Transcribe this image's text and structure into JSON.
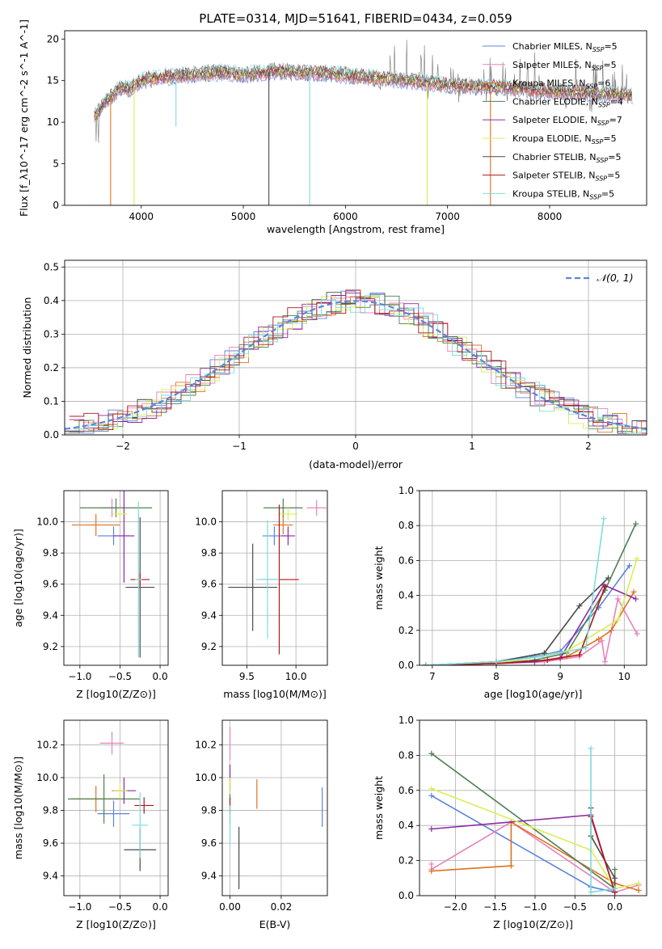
{
  "figure": {
    "title": "PLATE=0314, MJD=51641, FIBERID=0434, z=0.059"
  },
  "colors": {
    "chabrier_miles": "#5b84dc",
    "salpeter_miles": "#e882bb",
    "kroupa_miles": "#e0731e",
    "chabrier_elodie": "#4f8050",
    "salpeter_elodie": "#8d2aa6",
    "kroupa_elodie": "#d8ef55",
    "chabrier_stelib": "#4a4a4a",
    "salpeter_stelib": "#b01818",
    "kroupa_stelib": "#7fdcdc",
    "grid": "#b0b0b0"
  },
  "chart_data": [
    {
      "id": "spectrum",
      "type": "line",
      "xlabel": "wavelength [Angstrom, rest frame]",
      "ylabel": "Flux [f_λ10^-17 erg cm^-2 s^-1 A^-1]",
      "xlim": [
        3250,
        8950
      ],
      "ylim": [
        0,
        21
      ],
      "xticks": [
        4000,
        5000,
        6000,
        7000,
        8000
      ],
      "yticks": [
        0,
        5,
        10,
        15,
        20
      ],
      "grid": false,
      "legend_position": "top-right",
      "legend": [
        {
          "label": "Chabrier MILES, N",
          "sub": "SSP",
          "tail": "=5",
          "color": "chabrier_miles"
        },
        {
          "label": "Salpeter MILES, N",
          "sub": "SSP",
          "tail": "=5",
          "color": "salpeter_miles"
        },
        {
          "label": "Kroupa MILES, N",
          "sub": "SSP",
          "tail": "=6",
          "color": "kroupa_miles"
        },
        {
          "label": "Chabrier ELODIE, N",
          "sub": "SSP",
          "tail": "=4",
          "color": "chabrier_elodie"
        },
        {
          "label": "Salpeter ELODIE, N",
          "sub": "SSP",
          "tail": "=7",
          "color": "salpeter_elodie"
        },
        {
          "label": "Kroupa ELODIE, N",
          "sub": "SSP",
          "tail": "=5",
          "color": "kroupa_elodie"
        },
        {
          "label": "Chabrier STELIB, N",
          "sub": "SSP",
          "tail": "=5",
          "color": "chabrier_stelib"
        },
        {
          "label": "Salpeter STELIB, N",
          "sub": "SSP",
          "tail": "=5",
          "color": "salpeter_stelib"
        },
        {
          "label": "Kroupa STELIB, N",
          "sub": "SSP",
          "tail": "=5",
          "color": "kroupa_stelib"
        }
      ],
      "continuum": [
        [
          3540,
          10.5
        ],
        [
          3650,
          12.5
        ],
        [
          3800,
          14.2
        ],
        [
          3900,
          14.0
        ],
        [
          4000,
          15.0
        ],
        [
          4200,
          15.4
        ],
        [
          4400,
          15.6
        ],
        [
          4600,
          15.8
        ],
        [
          4800,
          16.0
        ],
        [
          5000,
          15.7
        ],
        [
          5300,
          16.1
        ],
        [
          5600,
          16.0
        ],
        [
          6000,
          15.7
        ],
        [
          6300,
          15.3
        ],
        [
          6600,
          15.0
        ],
        [
          6900,
          14.6
        ],
        [
          7200,
          14.3
        ],
        [
          7500,
          14.2
        ],
        [
          7800,
          13.9
        ],
        [
          8100,
          13.7
        ],
        [
          8400,
          13.5
        ],
        [
          8810,
          13.2
        ]
      ],
      "dips": [
        [
          3700,
          0
        ],
        [
          3930,
          0
        ],
        [
          4340,
          9.5
        ],
        [
          5250,
          0
        ],
        [
          5650,
          0
        ],
        [
          6800,
          0
        ],
        [
          7420,
          0
        ]
      ]
    },
    {
      "id": "residuals",
      "type": "line",
      "xlabel": "(data-model)/error",
      "ylabel": "Normed distribution",
      "xlim": [
        -2.5,
        2.5
      ],
      "ylim": [
        0,
        0.52
      ],
      "xticks": [
        -2,
        -1,
        0,
        1,
        2
      ],
      "yticks": [
        0.0,
        0.1,
        0.2,
        0.3,
        0.4,
        0.5
      ],
      "grid": true,
      "legend_position": "top-right",
      "legend": [
        {
          "label": "𝒩(0, 1)",
          "color": "chabrier_miles",
          "dashed": true
        }
      ],
      "gaussian": {
        "mean": 0,
        "sigma": 1
      }
    },
    {
      "id": "age_vs_Z",
      "type": "scatter",
      "xlabel": "Z [log10(Z/Z⊙)]",
      "ylabel": "age  [log10(age/yr)]",
      "xlim": [
        -1.2,
        0.1
      ],
      "ylim": [
        9.08,
        10.2
      ],
      "xticks": [
        -1.0,
        -0.5,
        0.0
      ],
      "yticks": [
        9.2,
        9.4,
        9.6,
        9.8,
        10.0
      ],
      "grid": true,
      "points": [
        {
          "x": -0.58,
          "y": 9.91,
          "xerr": 0.2,
          "yerr": 0.06,
          "color": "chabrier_miles"
        },
        {
          "x": -0.6,
          "y": 10.09,
          "xerr": 0.15,
          "yerr": 0.06,
          "color": "salpeter_miles"
        },
        {
          "x": -0.8,
          "y": 9.98,
          "xerr": 0.3,
          "yerr": 0.07,
          "color": "kroupa_miles"
        },
        {
          "x": -0.55,
          "y": 10.09,
          "xerr": 0.45,
          "yerr": 0.06,
          "color": "chabrier_elodie"
        },
        {
          "x": -0.45,
          "y": 9.91,
          "xerr": 0.13,
          "yerr": 0.3,
          "color": "salpeter_elodie"
        },
        {
          "x": -0.5,
          "y": 10.05,
          "xerr": 0.09,
          "yerr": 0.04,
          "color": "kroupa_elodie"
        },
        {
          "x": -0.25,
          "y": 9.58,
          "xerr": 0.18,
          "yerr": 0.45,
          "color": "chabrier_stelib"
        },
        {
          "x": -0.25,
          "y": 9.63,
          "xerr": 0.12,
          "yerr": 0.04,
          "color": "salpeter_stelib"
        },
        {
          "x": -0.27,
          "y": 9.63,
          "xerr": 0.04,
          "yerr": 0.5,
          "color": "kroupa_stelib"
        }
      ]
    },
    {
      "id": "age_vs_mass",
      "type": "scatter",
      "xlabel": "mass [log10(M/M⊙)]",
      "ylabel": "",
      "xlim": [
        9.25,
        10.32
      ],
      "ylim": [
        9.08,
        10.2
      ],
      "xticks": [
        9.5,
        10.0
      ],
      "yticks": [
        9.2,
        9.4,
        9.6,
        9.8,
        10.0
      ],
      "grid": true,
      "points": [
        {
          "x": 9.78,
          "y": 9.91,
          "xerr": 0.12,
          "yerr": 0.06,
          "color": "chabrier_miles"
        },
        {
          "x": 10.21,
          "y": 10.09,
          "xerr": 0.1,
          "yerr": 0.05,
          "color": "salpeter_miles"
        },
        {
          "x": 9.87,
          "y": 9.98,
          "xerr": 0.1,
          "yerr": 0.06,
          "color": "kroupa_miles"
        },
        {
          "x": 9.87,
          "y": 10.09,
          "xerr": 0.2,
          "yerr": 0.06,
          "color": "chabrier_elodie"
        },
        {
          "x": 9.92,
          "y": 9.91,
          "xerr": 0.07,
          "yerr": 0.06,
          "color": "salpeter_elodie"
        },
        {
          "x": 9.92,
          "y": 10.05,
          "xerr": 0.1,
          "yerr": 0.04,
          "color": "kroupa_elodie"
        },
        {
          "x": 9.56,
          "y": 9.58,
          "xerr": 0.25,
          "yerr": 0.28,
          "color": "chabrier_stelib"
        },
        {
          "x": 9.83,
          "y": 9.63,
          "xerr": 0.2,
          "yerr": 0.48,
          "color": "salpeter_stelib"
        },
        {
          "x": 9.71,
          "y": 9.63,
          "xerr": 0.12,
          "yerr": 0.38,
          "color": "kroupa_stelib"
        }
      ]
    },
    {
      "id": "mass_weight_vs_age",
      "type": "line",
      "xlabel": "age  [log10(age/yr)]",
      "ylabel": "mass weight",
      "xlim": [
        6.8,
        10.35
      ],
      "ylim": [
        0,
        1.0
      ],
      "xticks": [
        7,
        8,
        9,
        10
      ],
      "yticks": [
        0.0,
        0.2,
        0.4,
        0.6,
        0.8,
        1.0
      ],
      "grid": true,
      "series": [
        {
          "color": "chabrier_miles",
          "x": [
            6.9,
            8.0,
            8.6,
            9.0,
            9.6,
            10.08
          ],
          "y": [
            0.0,
            0.02,
            0.05,
            0.08,
            0.33,
            0.57
          ]
        },
        {
          "color": "salpeter_miles",
          "x": [
            6.9,
            8.0,
            8.75,
            9.3,
            9.65,
            9.7,
            9.9,
            10.2
          ],
          "y": [
            0.0,
            0.01,
            0.02,
            0.05,
            0.14,
            0.02,
            0.38,
            0.18
          ]
        },
        {
          "color": "kroupa_miles",
          "x": [
            6.9,
            8.0,
            8.6,
            9.1,
            9.6,
            9.8,
            10.15
          ],
          "y": [
            0.0,
            0.01,
            0.02,
            0.05,
            0.15,
            0.2,
            0.42
          ]
        },
        {
          "color": "chabrier_elodie",
          "x": [
            6.9,
            8.0,
            8.6,
            9.1,
            9.7,
            10.18
          ],
          "y": [
            0.0,
            0.01,
            0.03,
            0.07,
            0.43,
            0.81
          ]
        },
        {
          "color": "salpeter_elodie",
          "x": [
            6.9,
            8.0,
            8.6,
            9.0,
            9.68,
            10.18
          ],
          "y": [
            0.0,
            0.01,
            0.02,
            0.04,
            0.46,
            0.38
          ]
        },
        {
          "color": "kroupa_elodie",
          "x": [
            6.9,
            8.0,
            8.5,
            9.1,
            9.9,
            10.2
          ],
          "y": [
            0.0,
            0.01,
            0.04,
            0.08,
            0.26,
            0.61
          ]
        },
        {
          "color": "chabrier_stelib",
          "x": [
            6.9,
            8.0,
            8.75,
            9.3,
            9.75
          ],
          "y": [
            0.0,
            0.02,
            0.07,
            0.34,
            0.5
          ]
        },
        {
          "color": "salpeter_stelib",
          "x": [
            6.9,
            8.0,
            8.8,
            9.3,
            9.7
          ],
          "y": [
            0.0,
            0.01,
            0.03,
            0.06,
            0.45
          ]
        },
        {
          "color": "kroupa_stelib",
          "x": [
            6.9,
            8.0,
            8.7,
            9.4,
            9.68
          ],
          "y": [
            0.0,
            0.02,
            0.05,
            0.1,
            0.84
          ]
        }
      ]
    },
    {
      "id": "mass_vs_Z",
      "type": "scatter",
      "xlabel": "Z [log10(Z/Z⊙)]",
      "ylabel": "mass [log10(M/M⊙)]",
      "xlim": [
        -1.2,
        0.1
      ],
      "ylim": [
        9.28,
        10.35
      ],
      "xticks": [
        -1.0,
        -0.5,
        0.0
      ],
      "yticks": [
        9.4,
        9.6,
        9.8,
        10.0,
        10.2
      ],
      "grid": true,
      "points": [
        {
          "x": -0.58,
          "y": 9.78,
          "xerr": 0.2,
          "yerr": 0.08,
          "color": "chabrier_miles"
        },
        {
          "x": -0.6,
          "y": 10.21,
          "xerr": 0.15,
          "yerr": 0.07,
          "color": "salpeter_miles"
        },
        {
          "x": -0.8,
          "y": 9.87,
          "xerr": 0.3,
          "yerr": 0.08,
          "color": "kroupa_miles"
        },
        {
          "x": -0.7,
          "y": 9.87,
          "xerr": 0.45,
          "yerr": 0.15,
          "color": "chabrier_elodie"
        },
        {
          "x": -0.45,
          "y": 9.92,
          "xerr": 0.15,
          "yerr": 0.08,
          "color": "salpeter_elodie"
        },
        {
          "x": -0.5,
          "y": 9.92,
          "xerr": 0.09,
          "yerr": 0.05,
          "color": "kroupa_elodie"
        },
        {
          "x": -0.25,
          "y": 9.56,
          "xerr": 0.2,
          "yerr": 0.13,
          "color": "chabrier_stelib"
        },
        {
          "x": -0.2,
          "y": 9.83,
          "xerr": 0.12,
          "yerr": 0.05,
          "color": "salpeter_stelib"
        },
        {
          "x": -0.25,
          "y": 9.71,
          "xerr": 0.1,
          "yerr": 0.2,
          "color": "kroupa_stelib"
        }
      ]
    },
    {
      "id": "mass_vs_EBV",
      "type": "scatter",
      "xlabel": "E(B-V)",
      "ylabel": "",
      "xlim": [
        -0.003,
        0.038
      ],
      "ylim": [
        9.28,
        10.35
      ],
      "xticks": [
        0.0,
        0.02
      ],
      "yticks": [
        9.4,
        9.6,
        9.8,
        10.0,
        10.2
      ],
      "grid": true,
      "points": [
        {
          "x": 0.036,
          "y": 9.82,
          "xerr": 0,
          "yerr": 0.12,
          "color": "chabrier_miles"
        },
        {
          "x": 0.0,
          "y": 10.21,
          "xerr": 0,
          "yerr": 0.1,
          "color": "salpeter_miles"
        },
        {
          "x": 0.0105,
          "y": 9.9,
          "xerr": 0,
          "yerr": 0.09,
          "color": "kroupa_miles"
        },
        {
          "x": 0.0,
          "y": 9.87,
          "xerr": 0,
          "yerr": 0.15,
          "color": "chabrier_elodie"
        },
        {
          "x": 0.0,
          "y": 10.0,
          "xerr": 0,
          "yerr": 0.08,
          "color": "salpeter_elodie"
        },
        {
          "x": 0.0,
          "y": 9.95,
          "xerr": 0,
          "yerr": 0.05,
          "color": "kroupa_elodie"
        },
        {
          "x": 0.0035,
          "y": 9.51,
          "xerr": 0,
          "yerr": 0.19,
          "color": "chabrier_stelib"
        },
        {
          "x": 0.0,
          "y": 9.83,
          "xerr": 0,
          "yerr": 0.05,
          "color": "salpeter_stelib"
        },
        {
          "x": 0.0,
          "y": 9.71,
          "xerr": 0,
          "yerr": 0.12,
          "color": "kroupa_stelib"
        }
      ]
    },
    {
      "id": "mass_weight_vs_Z",
      "type": "line",
      "xlabel": "Z [log10(Z/Z⊙)]",
      "ylabel": "mass weight",
      "xlim": [
        -2.45,
        0.4
      ],
      "ylim": [
        0,
        1.0
      ],
      "xticks": [
        -2.0,
        -1.5,
        -1.0,
        -0.5,
        0.0
      ],
      "yticks": [
        0.0,
        0.2,
        0.4,
        0.6,
        0.8,
        1.0
      ],
      "grid": true,
      "series": [
        {
          "color": "chabrier_miles",
          "x": [
            -2.3,
            -0.3,
            0.0
          ],
          "y": [
            0.57,
            0.05,
            0.02
          ]
        },
        {
          "color": "salpeter_miles",
          "x": [
            -2.3,
            -2.3,
            -1.3,
            0.0,
            0.3
          ],
          "y": [
            0.18,
            0.15,
            0.42,
            0.02,
            0.06
          ]
        },
        {
          "color": "kroupa_miles",
          "x": [
            -2.3,
            -1.3,
            -1.3,
            0.0,
            0.3
          ],
          "y": [
            0.14,
            0.17,
            0.42,
            0.07,
            0.03
          ]
        },
        {
          "color": "chabrier_elodie",
          "x": [
            -2.3,
            0.0,
            0.0
          ],
          "y": [
            0.81,
            0.04,
            0.15
          ]
        },
        {
          "color": "salpeter_elodie",
          "x": [
            -2.3,
            -0.3,
            0.0
          ],
          "y": [
            0.38,
            0.46,
            0.02
          ]
        },
        {
          "color": "kroupa_elodie",
          "x": [
            -2.3,
            -0.3,
            0.0,
            0.3
          ],
          "y": [
            0.61,
            0.26,
            0.04,
            0.07
          ]
        },
        {
          "color": "chabrier_stelib",
          "x": [
            -0.3,
            -0.3,
            0.0,
            0.0
          ],
          "y": [
            0.5,
            0.34,
            0.1,
            0.02
          ]
        },
        {
          "color": "salpeter_stelib",
          "x": [
            -0.3,
            0.0
          ],
          "y": [
            0.45,
            0.02
          ]
        },
        {
          "color": "kroupa_stelib",
          "x": [
            -0.3,
            -0.3,
            0.0
          ],
          "y": [
            0.84,
            0.02,
            0.04
          ]
        }
      ]
    }
  ]
}
